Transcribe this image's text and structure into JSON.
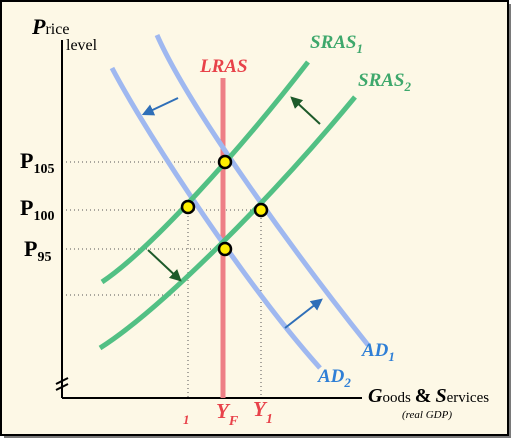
{
  "y_axis": {
    "initial": "P",
    "rest": "rice",
    "line2": "level"
  },
  "x_axis": {
    "initial1": "G",
    "rest1": "oods",
    "amp": "&",
    "initial2": "S",
    "rest2": "ervices",
    "note": "(real GDP)"
  },
  "curves": {
    "lras": "LRAS",
    "sras1": {
      "text": "SRAS",
      "sub": "1"
    },
    "sras2": {
      "text": "SRAS",
      "sub": "2"
    },
    "ad1": {
      "text": "AD",
      "sub": "1"
    },
    "ad2": {
      "text": "AD",
      "sub": "2"
    }
  },
  "price_labels": [
    {
      "text": "P",
      "sub": "105"
    },
    {
      "text": "P",
      "sub": "100"
    },
    {
      "text": "P",
      "sub": "95"
    }
  ],
  "output_labels": {
    "left": "1",
    "yf": {
      "text": "Y",
      "sub": "F"
    },
    "y1": {
      "text": "Y",
      "sub": "1"
    }
  }
}
